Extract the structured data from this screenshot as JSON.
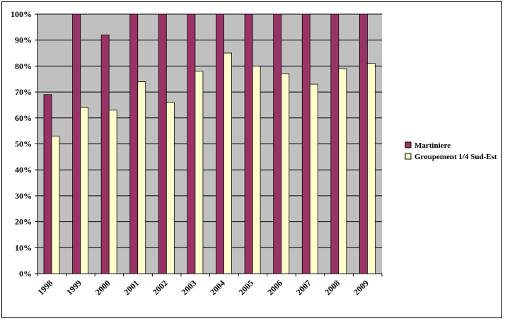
{
  "chart_data": {
    "type": "bar",
    "categories": [
      "1998",
      "1999",
      "2000",
      "2001",
      "2002",
      "2003",
      "2004",
      "2005",
      "2006",
      "2007",
      "2008",
      "2009"
    ],
    "series": [
      {
        "name": "Martiniere",
        "color": "#993366",
        "values": [
          69,
          100,
          92,
          100,
          100,
          100,
          100,
          100,
          100,
          100,
          100,
          100
        ]
      },
      {
        "name": "Groupement 1/4 Sud-Est",
        "color": "#FFFFCC",
        "values": [
          53,
          64,
          63,
          74,
          66,
          78,
          85,
          80,
          77,
          73,
          79,
          81
        ]
      }
    ],
    "ylim": [
      0,
      100
    ],
    "yticks": [
      "0%",
      "10%",
      "20%",
      "30%",
      "40%",
      "50%",
      "60%",
      "70%",
      "80%",
      "90%",
      "100%"
    ],
    "title": "",
    "xlabel": "",
    "ylabel": "",
    "grid": true,
    "legend": "right",
    "plot_background": "#C0C0C0"
  }
}
